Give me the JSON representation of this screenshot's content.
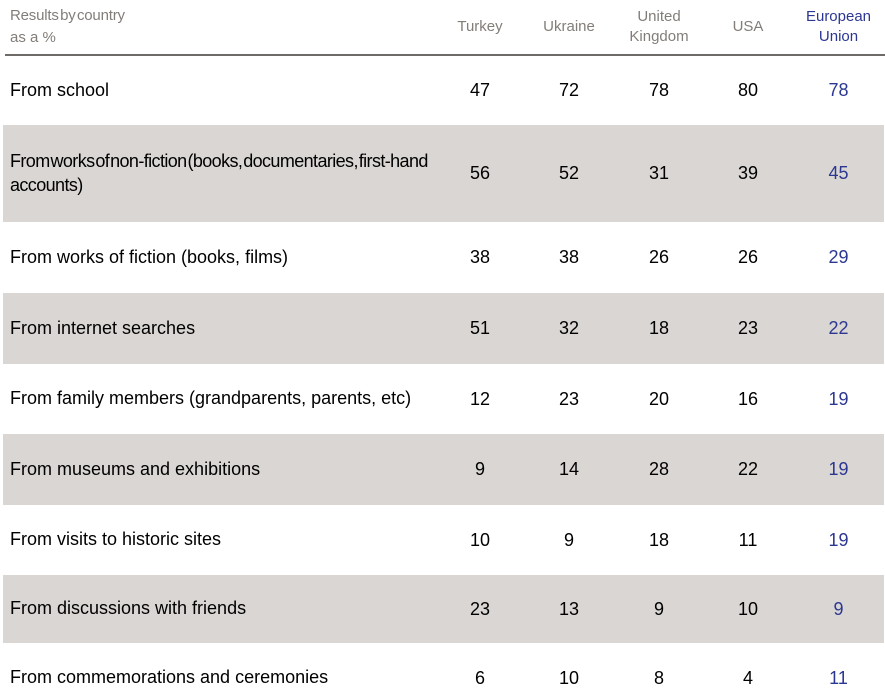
{
  "chart_data": {
    "type": "table",
    "title": "Results by country as a %",
    "corner_label_line1": "Results by country",
    "corner_label_line2": "as a %",
    "columns": [
      "Turkey",
      "Ukraine",
      "United Kingdom",
      "USA",
      "European Union"
    ],
    "highlight_column": "European Union",
    "rows": [
      {
        "label": "From school",
        "values": [
          47,
          72,
          78,
          80,
          78
        ]
      },
      {
        "label": "From works of non-fiction (books, documentaries, first-hand accounts)",
        "values": [
          56,
          52,
          31,
          39,
          45
        ]
      },
      {
        "label": "From works of fiction (books, films)",
        "values": [
          38,
          38,
          26,
          26,
          29
        ]
      },
      {
        "label": "From internet searches",
        "values": [
          51,
          32,
          18,
          23,
          22
        ]
      },
      {
        "label": "From family members (grandparents, parents, etc)",
        "values": [
          12,
          23,
          20,
          16,
          19
        ]
      },
      {
        "label": "From museums and exhibitions",
        "values": [
          9,
          14,
          28,
          22,
          19
        ]
      },
      {
        "label": "From visits to historic sites",
        "values": [
          10,
          9,
          18,
          11,
          19
        ]
      },
      {
        "label": "From discussions with friends",
        "values": [
          23,
          13,
          9,
          10,
          9
        ]
      },
      {
        "label": "From commemorations and ceremonies",
        "values": [
          6,
          10,
          8,
          4,
          11
        ]
      }
    ],
    "colors": {
      "header_text": "#837d79",
      "highlight_text": "#2c3792",
      "stripe": "#d9d6d3",
      "divider": "#6e6a67",
      "body_text": "#000000"
    },
    "layout": {
      "grid": "off",
      "stripe_pattern": "even-rows-shaded",
      "values_unit": "percent"
    }
  }
}
